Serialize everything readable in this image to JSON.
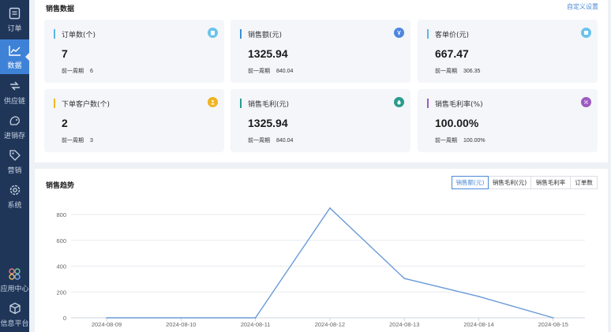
{
  "sidebar": {
    "items": [
      {
        "label": "订单",
        "icon": "order-icon"
      },
      {
        "label": "数据",
        "icon": "chart-line-icon",
        "active": true
      },
      {
        "label": "供应链",
        "icon": "supply-chain-icon"
      },
      {
        "label": "进销存",
        "icon": "inventory-icon"
      },
      {
        "label": "营销",
        "icon": "tag-icon"
      },
      {
        "label": "系统",
        "icon": "gear-icon"
      },
      {
        "label": "应用中心",
        "icon": "app-center-icon"
      },
      {
        "label": "信息平台",
        "icon": "cube-icon"
      }
    ]
  },
  "sales": {
    "title": "销售数据",
    "custom_settings": "自定义设置",
    "cards": [
      {
        "title": "订单数(个)",
        "value": "7",
        "prev_label": "前一周期",
        "prev_value": "6",
        "accent": "#5bb8e8",
        "icon": "clipboard-icon",
        "icon_color": "#6cc3eb"
      },
      {
        "title": "销售额(元)",
        "value": "1325.94",
        "prev_label": "前一周期",
        "prev_value": "840.04",
        "accent": "#3a8fd6",
        "icon": "yen-icon",
        "icon_color": "#4f86e0"
      },
      {
        "title": "客单价(元)",
        "value": "667.47",
        "prev_label": "前一周期",
        "prev_value": "306.35",
        "accent": "#5bb8e8",
        "icon": "receipt-icon",
        "icon_color": "#6cc3eb"
      },
      {
        "title": "下单客户数(个)",
        "value": "2",
        "prev_label": "前一周期",
        "prev_value": "3",
        "accent": "#f2b824",
        "icon": "user-icon",
        "icon_color": "#f0b323"
      },
      {
        "title": "销售毛利(元)",
        "value": "1325.94",
        "prev_label": "前一周期",
        "prev_value": "840.04",
        "accent": "#2a9c8e",
        "icon": "money-bag-icon",
        "icon_color": "#2a9c8e"
      },
      {
        "title": "销售毛利率(%)",
        "value": "100.00%",
        "prev_label": "前一周期",
        "prev_value": "100.00%",
        "accent": "#9d5cc0",
        "icon": "percent-icon",
        "icon_color": "#9d5cc0"
      }
    ]
  },
  "trend": {
    "title": "销售趋势",
    "tabs": [
      "销售额(元)",
      "销售毛利(元)",
      "销售毛利率",
      "订单数"
    ],
    "active_tab": 0
  },
  "chart_data": {
    "type": "line",
    "categories": [
      "2024-08-09",
      "2024-08-10",
      "2024-08-11",
      "2024-08-12",
      "2024-08-13",
      "2024-08-14",
      "2024-08-15"
    ],
    "series": [
      {
        "values": [
          0,
          0,
          0,
          850,
          305,
          165,
          0
        ]
      }
    ],
    "yticks": [
      0,
      200,
      400,
      600,
      800
    ],
    "ylim": [
      0,
      880
    ],
    "grid": true,
    "line_color": "#6a9bd8"
  }
}
